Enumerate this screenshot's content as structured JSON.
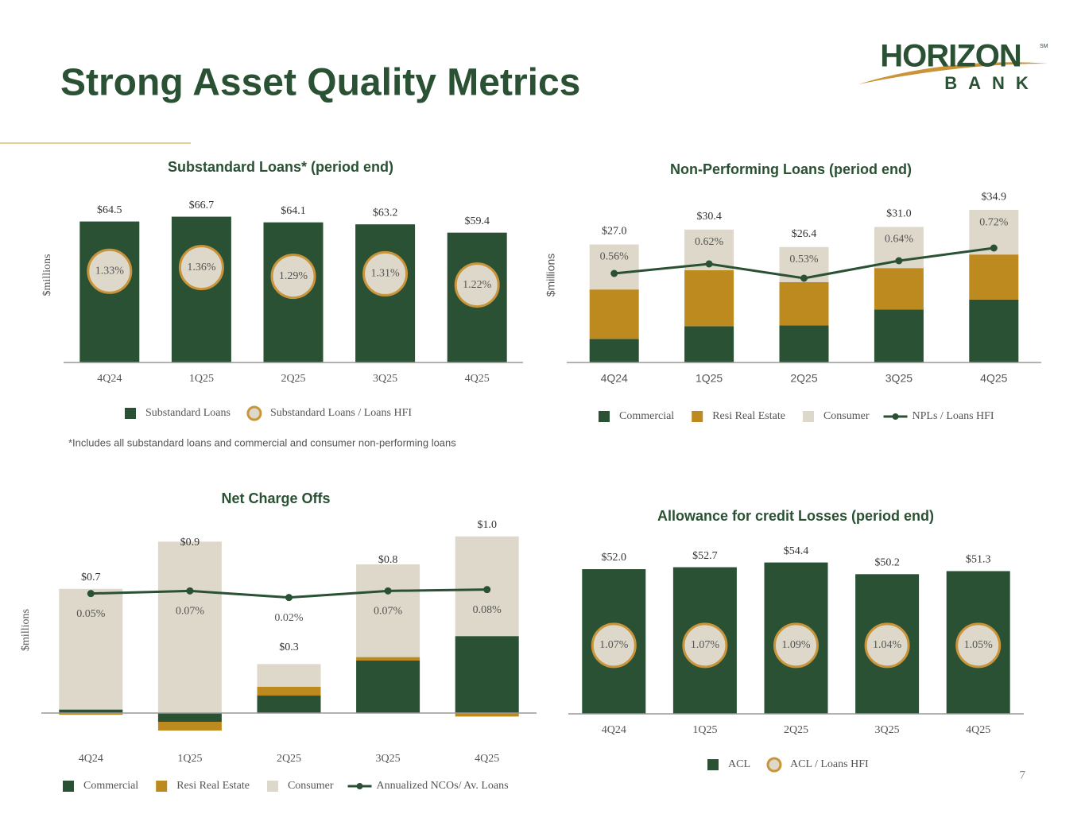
{
  "title": "Strong Asset Quality Metrics",
  "logo": {
    "name": "HORIZON",
    "sub": "BANK",
    "mark": "SM"
  },
  "page_number": "7",
  "chart_data": [
    {
      "type": "bar",
      "title": "Substandard Loans* (period end)",
      "y_label": "$millions",
      "categories": [
        "4Q24",
        "1Q25",
        "2Q25",
        "3Q25",
        "4Q25"
      ],
      "series": [
        {
          "name": "Substandard Loans",
          "kind": "bar",
          "color": "#2a5133",
          "values": [
            64.5,
            66.7,
            64.1,
            63.2,
            59.4
          ],
          "value_labels": [
            "$64.5",
            "$66.7",
            "$64.1",
            "$63.2",
            "$59.4"
          ]
        },
        {
          "name": "Substandard Loans / Loans HFI",
          "kind": "circle",
          "axis": "y2",
          "color": "#c9943a",
          "values": [
            1.33,
            1.36,
            1.29,
            1.31,
            1.22
          ],
          "value_labels": [
            "1.33%",
            "1.36%",
            "1.29%",
            "1.31%",
            "1.22%"
          ]
        }
      ],
      "ylim": [
        0,
        80
      ],
      "y2lim": [
        0.6,
        2.0
      ],
      "footnote": "*Includes all substandard loans and commercial and consumer non-performing loans"
    },
    {
      "type": "stacked_bar",
      "title": "Non-Performing Loans (period end)",
      "y_label": "$millions",
      "categories": [
        "4Q24",
        "1Q25",
        "2Q25",
        "3Q25",
        "4Q25"
      ],
      "series": [
        {
          "name": "Commercial",
          "kind": "bar",
          "color": "#2a5133",
          "values": [
            5.4,
            8.3,
            8.5,
            12.1,
            14.4
          ]
        },
        {
          "name": "Resi Real Estate",
          "kind": "bar",
          "color": "#bd8a1f",
          "values": [
            11.3,
            12.8,
            9.9,
            9.5,
            10.3
          ]
        },
        {
          "name": "Consumer",
          "kind": "bar",
          "color": "#ddd8c9",
          "values": [
            10.3,
            9.3,
            8.0,
            9.4,
            10.2
          ]
        },
        {
          "name": "NPLs / Loans HFI",
          "kind": "line",
          "axis": "y2",
          "color": "#2a5133",
          "values": [
            0.56,
            0.62,
            0.53,
            0.64,
            0.72
          ],
          "value_labels": [
            "0.56%",
            "0.62%",
            "0.53%",
            "0.64%",
            "0.72%"
          ]
        }
      ],
      "totals": [
        27.0,
        30.4,
        26.4,
        31.0,
        34.9
      ],
      "total_labels": [
        "$27.0",
        "$30.4",
        "$26.4",
        "$31.0",
        "$34.9"
      ],
      "ylim": [
        0,
        40
      ],
      "y2lim": [
        0,
        1.1
      ]
    },
    {
      "type": "stacked_bar",
      "title": "Net Charge Offs",
      "y_label": "$millions",
      "categories": [
        "4Q24",
        "1Q25",
        "2Q25",
        "3Q25",
        "4Q25"
      ],
      "series": [
        {
          "name": "Commercial",
          "kind": "bar",
          "color": "#2a5133",
          "values": [
            0.02,
            -0.05,
            0.1,
            0.3,
            0.44
          ]
        },
        {
          "name": "Resi Real Estate",
          "kind": "bar",
          "color": "#bd8a1f",
          "values": [
            -0.01,
            -0.05,
            0.05,
            0.02,
            -0.02
          ]
        },
        {
          "name": "Consumer",
          "kind": "bar",
          "color": "#ddd8c9",
          "values": [
            0.69,
            0.98,
            0.13,
            0.53,
            0.57
          ]
        },
        {
          "name": "Annualized NCOs/ Av. Loans",
          "kind": "line",
          "axis": "y2",
          "color": "#2a5133",
          "values": [
            0.05,
            0.07,
            0.02,
            0.07,
            0.08
          ],
          "value_labels": [
            "0.05%",
            "0.07%",
            "0.02%",
            "0.07%",
            "0.08%"
          ]
        }
      ],
      "totals": [
        0.7,
        0.9,
        0.3,
        0.8,
        1.0
      ],
      "total_labels": [
        "$0.7",
        "$0.9",
        "$0.3",
        "$0.8",
        "$1.0"
      ],
      "ylim": [
        -0.15,
        1.1
      ],
      "y2lim": [
        -1.05,
        0.6
      ]
    },
    {
      "type": "bar",
      "title": "Allowance for credit Losses (period end)",
      "categories": [
        "4Q24",
        "1Q25",
        "2Q25",
        "3Q25",
        "4Q25"
      ],
      "series": [
        {
          "name": "ACL",
          "kind": "bar",
          "color": "#2a5133",
          "values": [
            52.0,
            52.7,
            54.4,
            50.2,
            51.3
          ],
          "value_labels": [
            "$52.0",
            "$52.7",
            "$54.4",
            "$50.2",
            "$51.3"
          ]
        },
        {
          "name": "ACL / Loans HFI",
          "kind": "circle",
          "color": "#c9943a",
          "values": [
            1.07,
            1.07,
            1.09,
            1.04,
            1.05
          ],
          "value_labels": [
            "1.07%",
            "1.07%",
            "1.09%",
            "1.04%",
            "1.05%"
          ]
        }
      ],
      "ylim": [
        0,
        60
      ]
    }
  ]
}
